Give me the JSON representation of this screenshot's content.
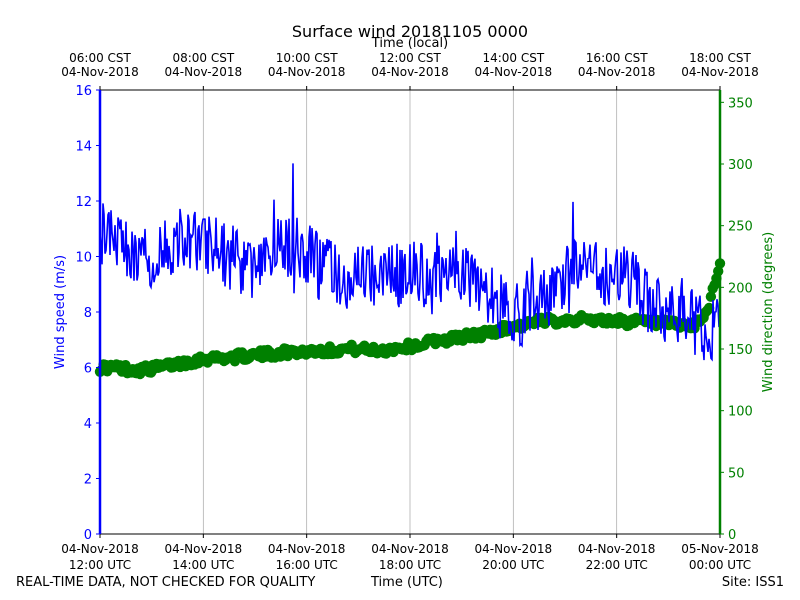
{
  "chart_data": {
    "type": "line",
    "title": "Surface wind 20181105 0000",
    "top_axis_label": "Time (local)",
    "xlabel": "Time (UTC)",
    "ylabel_left": "Wind speed (m/s)",
    "ylabel_right": "Wind direction (degrees)",
    "x_range_hours_utc": [
      12,
      24
    ],
    "ylim_left": [
      0,
      16
    ],
    "ylim_right": [
      0,
      360
    ],
    "left_ticks": [
      0,
      2,
      4,
      6,
      8,
      10,
      12,
      14,
      16
    ],
    "right_ticks": [
      0,
      50,
      100,
      150,
      200,
      250,
      300,
      350
    ],
    "grid": "vertical",
    "bottom_ticks": [
      {
        "hour": 12,
        "line1": "04-Nov-2018",
        "line2": "12:00 UTC"
      },
      {
        "hour": 14,
        "line1": "04-Nov-2018",
        "line2": "14:00 UTC"
      },
      {
        "hour": 16,
        "line1": "04-Nov-2018",
        "line2": "16:00 UTC"
      },
      {
        "hour": 18,
        "line1": "04-Nov-2018",
        "line2": "18:00 UTC"
      },
      {
        "hour": 20,
        "line1": "04-Nov-2018",
        "line2": "20:00 UTC"
      },
      {
        "hour": 22,
        "line1": "04-Nov-2018",
        "line2": "22:00 UTC"
      },
      {
        "hour": 24,
        "line1": "05-Nov-2018",
        "line2": "00:00 UTC"
      }
    ],
    "top_ticks": [
      {
        "hour": 12,
        "line1": "06:00 CST",
        "line2": "04-Nov-2018"
      },
      {
        "hour": 14,
        "line1": "08:00 CST",
        "line2": "04-Nov-2018"
      },
      {
        "hour": 16,
        "line1": "10:00 CST",
        "line2": "04-Nov-2018"
      },
      {
        "hour": 18,
        "line1": "12:00 CST",
        "line2": "04-Nov-2018"
      },
      {
        "hour": 20,
        "line1": "14:00 CST",
        "line2": "04-Nov-2018"
      },
      {
        "hour": 22,
        "line1": "16:00 CST",
        "line2": "04-Nov-2018"
      },
      {
        "hour": 24,
        "line1": "18:00 CST",
        "line2": "04-Nov-2018"
      }
    ],
    "series": [
      {
        "name": "Wind speed",
        "axis": "left",
        "color": "#0000ff",
        "style": "line",
        "x": [
          12.0,
          12.25,
          12.5,
          12.75,
          13.0,
          13.25,
          13.5,
          13.75,
          14.0,
          14.25,
          14.5,
          14.75,
          15.0,
          15.25,
          15.5,
          15.75,
          16.0,
          16.25,
          16.5,
          16.75,
          17.0,
          17.25,
          17.5,
          17.75,
          18.0,
          18.25,
          18.5,
          18.75,
          19.0,
          19.25,
          19.5,
          19.75,
          20.0,
          20.25,
          20.5,
          20.75,
          21.0,
          21.25,
          21.5,
          21.75,
          22.0,
          22.25,
          22.5,
          22.75,
          23.0,
          23.25,
          23.5,
          23.75,
          24.0
        ],
        "y": [
          10.8,
          10.6,
          10.2,
          9.8,
          9.9,
          10.1,
          10.6,
          10.5,
          10.4,
          10.3,
          9.9,
          9.7,
          9.5,
          9.6,
          10.4,
          10.3,
          10.2,
          9.6,
          9.4,
          9.2,
          9.3,
          9.2,
          9.4,
          9.3,
          9.5,
          9.4,
          9.0,
          9.8,
          9.6,
          9.0,
          8.7,
          8.2,
          7.8,
          8.0,
          8.3,
          8.6,
          9.0,
          9.5,
          9.6,
          9.4,
          9.5,
          9.3,
          8.6,
          8.2,
          7.9,
          8.1,
          7.6,
          7.4,
          7.5
        ]
      },
      {
        "name": "Wind direction",
        "axis": "right",
        "color": "#008000",
        "style": "markers",
        "x": [
          12.0,
          12.25,
          12.5,
          12.75,
          13.0,
          13.25,
          13.5,
          13.75,
          14.0,
          14.25,
          14.5,
          14.75,
          15.0,
          15.25,
          15.5,
          15.75,
          16.0,
          16.25,
          16.5,
          16.75,
          17.0,
          17.25,
          17.5,
          17.75,
          18.0,
          18.25,
          18.5,
          18.75,
          19.0,
          19.25,
          19.5,
          19.75,
          20.0,
          20.25,
          20.5,
          20.75,
          21.0,
          21.25,
          21.5,
          21.75,
          22.0,
          22.25,
          22.5,
          22.75,
          23.0,
          23.25,
          23.5,
          23.75,
          24.0
        ],
        "y": [
          135,
          135,
          134,
          133,
          134,
          136,
          138,
          140,
          142,
          143,
          143,
          144,
          145,
          146,
          147,
          148,
          148,
          149,
          149,
          150,
          150,
          149,
          149,
          151,
          152,
          154,
          157,
          158,
          160,
          161,
          163,
          166,
          168,
          170,
          172,
          173,
          174,
          174,
          174,
          173,
          173,
          172,
          172,
          171,
          170,
          169,
          168,
          180,
          220
        ]
      }
    ]
  },
  "footer": {
    "disclaimer": "REAL-TIME DATA, NOT CHECKED FOR QUALITY",
    "center": "Time (UTC)",
    "site": "Site: ISS1"
  }
}
